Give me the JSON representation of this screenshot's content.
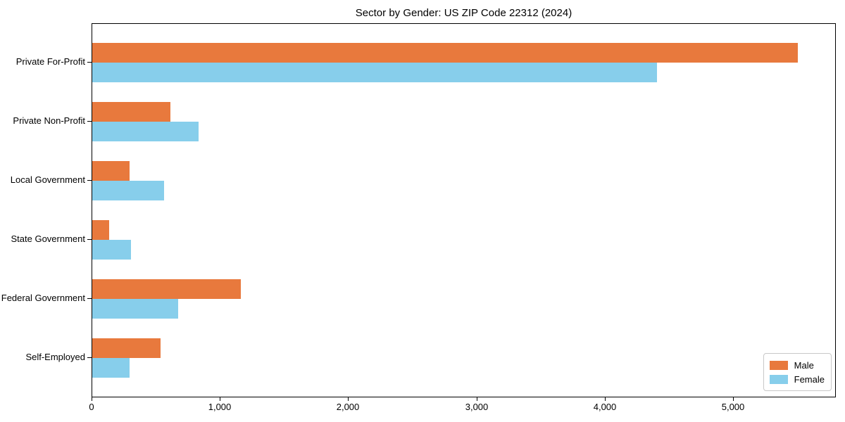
{
  "chart_data": {
    "type": "bar",
    "orientation": "horizontal",
    "title": "Sector by Gender: US ZIP Code 22312 (2024)",
    "xlabel": "",
    "ylabel": "",
    "categories": [
      "Private For-Profit",
      "Private Non-Profit",
      "Local Government",
      "State Government",
      "Federal Government",
      "Self-Employed"
    ],
    "series": [
      {
        "name": "Male",
        "color": "#e8793d",
        "values": [
          5500,
          610,
          290,
          130,
          1160,
          530
        ]
      },
      {
        "name": "Female",
        "color": "#87ceeb",
        "values": [
          4400,
          830,
          560,
          300,
          670,
          290
        ]
      }
    ],
    "xlim": [
      0,
      5800
    ],
    "xticks": [
      0,
      1000,
      2000,
      3000,
      4000,
      5000
    ],
    "xtick_labels": [
      "0",
      "1,000",
      "2,000",
      "3,000",
      "4,000",
      "5,000"
    ],
    "grid": false,
    "legend_position": "lower right",
    "plot_border_color": "#000000",
    "legend_border_color": "#c8c8c8"
  }
}
